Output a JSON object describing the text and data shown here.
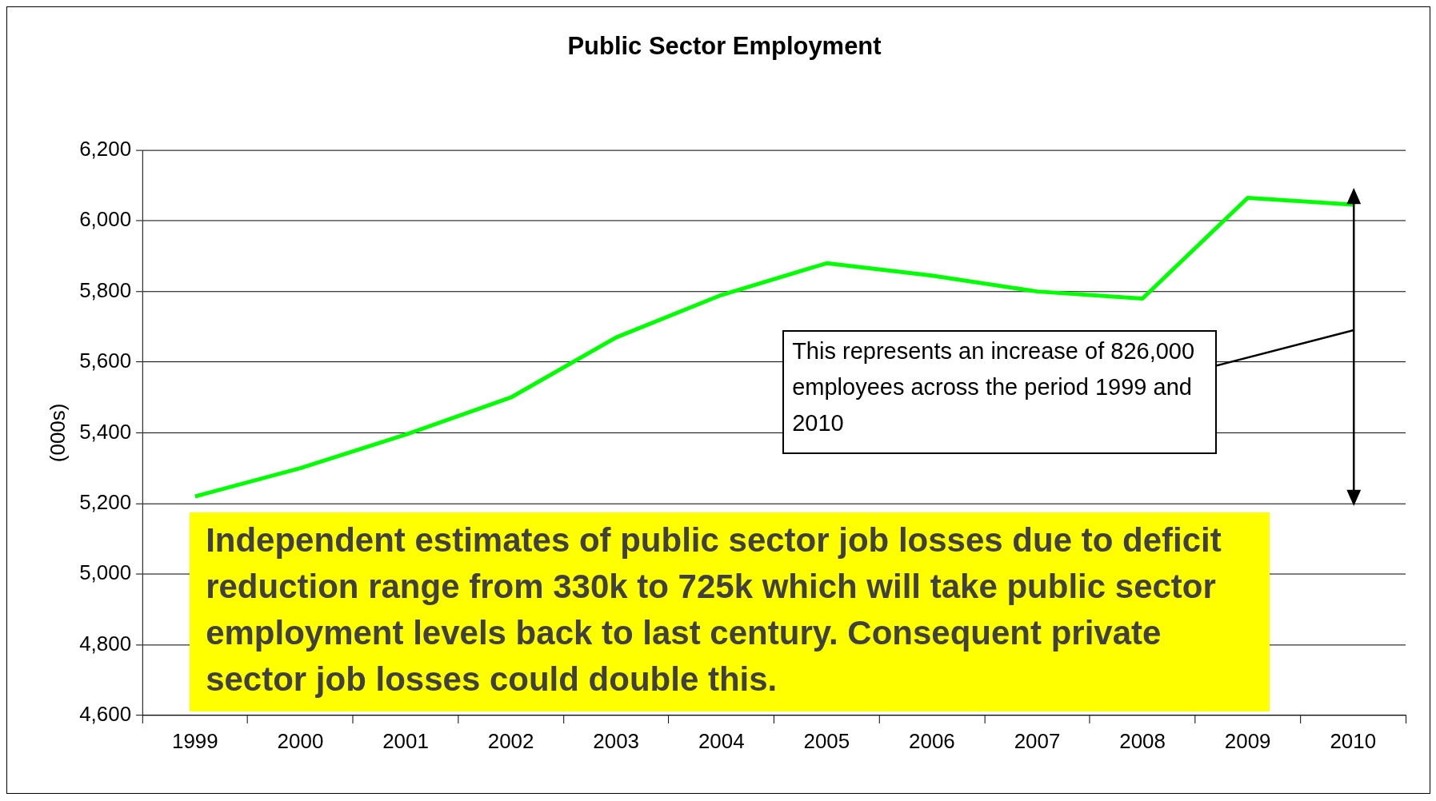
{
  "chart_data": {
    "type": "line",
    "title": "Public Sector Employment",
    "ylabel": "(000s)",
    "categories": [
      "1999",
      "2000",
      "2001",
      "2002",
      "2003",
      "2004",
      "2005",
      "2006",
      "2007",
      "2008",
      "2009",
      "2010"
    ],
    "series": [
      {
        "color": "#00ff00",
        "values": [
          5220,
          5300,
          5395,
          5500,
          5670,
          5790,
          5880,
          5845,
          5800,
          5780,
          6065,
          6046
        ]
      }
    ],
    "ylim": [
      4600,
      6200
    ],
    "yticks": [
      {
        "value": 4600,
        "label": "4,600"
      },
      {
        "value": 4800,
        "label": "4,800"
      },
      {
        "value": 5000,
        "label": "5,000"
      },
      {
        "value": 5200,
        "label": "5,200"
      },
      {
        "value": 5400,
        "label": "5,400"
      },
      {
        "value": 5600,
        "label": "5,600"
      },
      {
        "value": 5800,
        "label": "5,800"
      },
      {
        "value": 6000,
        "label": "6,000"
      },
      {
        "value": 6200,
        "label": "6,200"
      }
    ],
    "grid": "y",
    "legend": false,
    "marker": "none",
    "line_style": "solid",
    "annotations": [
      "This represents an increase of 826,000 employees across the period 1999 and 2010",
      "Independent estimates of public sector job losses due to deficit reduction range from 330k to 725k which will take public sector employment levels back to last century. Consequent private sector job losses could double this."
    ]
  }
}
